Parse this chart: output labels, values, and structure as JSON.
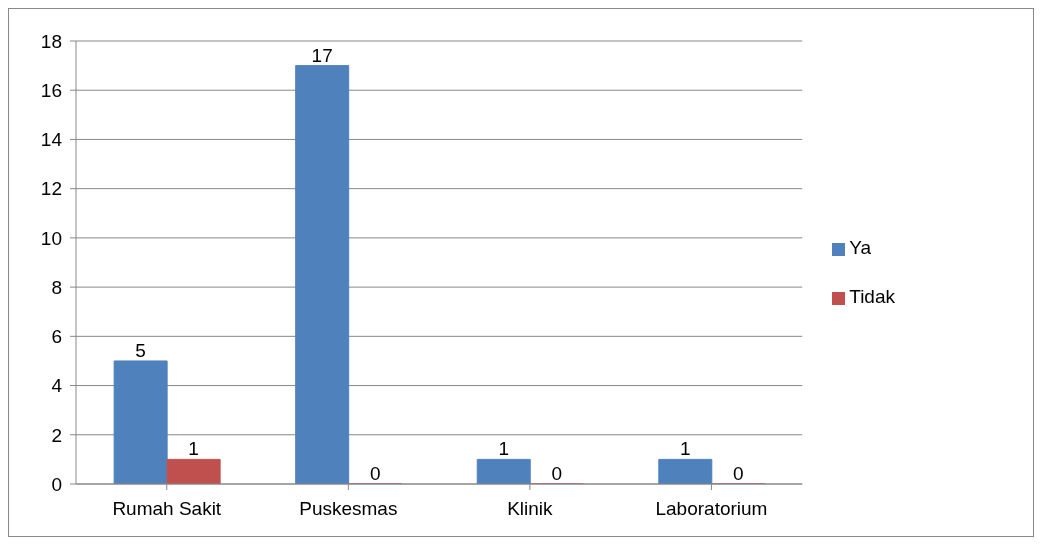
{
  "chart_data": {
    "type": "bar",
    "categories": [
      "Rumah Sakit",
      "Puskesmas",
      "Klinik",
      "Laboratorium"
    ],
    "series": [
      {
        "name": "Ya",
        "color": "#4f81bd",
        "values": [
          5,
          17,
          1,
          1
        ]
      },
      {
        "name": "Tidak",
        "color": "#c0504d",
        "values": [
          1,
          0,
          0,
          0
        ]
      }
    ],
    "ylim": [
      0,
      18
    ],
    "yticks": [
      0,
      2,
      4,
      6,
      8,
      10,
      12,
      14,
      16,
      18
    ],
    "grid": "y",
    "legend": "right",
    "data_labels": true
  }
}
